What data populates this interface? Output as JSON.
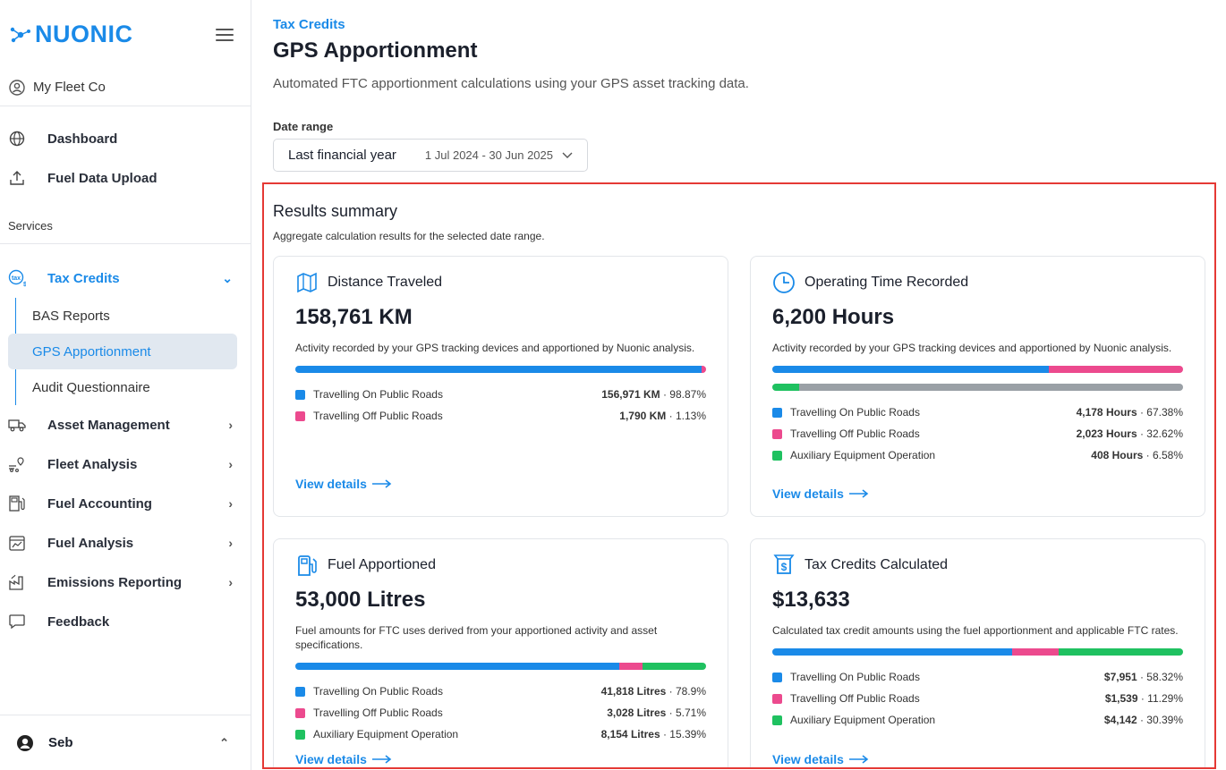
{
  "sidebar": {
    "brand": "NUONIC",
    "org": "My Fleet Co",
    "primary": [
      {
        "label": "Dashboard"
      },
      {
        "label": "Fuel Data Upload"
      }
    ],
    "services_label": "Services",
    "tax_credits": {
      "label": "Tax Credits",
      "children": [
        "BAS Reports",
        "GPS Apportionment",
        "Audit Questionnaire"
      ]
    },
    "groups": [
      {
        "label": "Asset Management"
      },
      {
        "label": "Fleet Analysis"
      },
      {
        "label": "Fuel Accounting"
      },
      {
        "label": "Fuel Analysis"
      },
      {
        "label": "Emissions Reporting"
      },
      {
        "label": "Feedback"
      }
    ],
    "user": "Seb"
  },
  "header": {
    "breadcrumb": "Tax Credits",
    "title": "GPS Apportionment",
    "subtitle": "Automated FTC apportionment calculations using your GPS asset tracking data."
  },
  "date_range": {
    "label": "Date range",
    "value": "Last financial year",
    "range": "1 Jul 2024 - 30 Jun 2025"
  },
  "summary": {
    "title": "Results summary",
    "subtitle": "Aggregate calculation results for the selected date range.",
    "view_details": "View details",
    "colors": {
      "blue": "#1a8ae8",
      "pink": "#ec4a8e",
      "green": "#1fc160",
      "grey": "#9aa0a6"
    },
    "cards": [
      {
        "title": "Distance Traveled",
        "big": "158,761 KM",
        "desc": "Activity recorded by your GPS tracking devices and apportioned by Nuonic analysis.",
        "bar": [
          0.9887,
          0.0113
        ],
        "rows": [
          {
            "label": "Travelling On Public Roads",
            "value": "156,971 KM",
            "pct": " · 98.87%"
          },
          {
            "label": "Travelling Off Public Roads",
            "value": "1,790 KM",
            "pct": " · 1.13%"
          }
        ]
      },
      {
        "title": "Operating Time Recorded",
        "big": "6,200 Hours",
        "desc": "Activity recorded by your GPS tracking devices and apportioned by Nuonic analysis.",
        "bar": [
          0.6738,
          0.3262
        ],
        "bar2": [
          0.0658,
          0.9342
        ],
        "rows": [
          {
            "label": "Travelling On Public Roads",
            "value": "4,178 Hours",
            "pct": " · 67.38%"
          },
          {
            "label": "Travelling Off Public Roads",
            "value": "2,023 Hours",
            "pct": " · 32.62%"
          },
          {
            "label": "Auxiliary Equipment Operation",
            "value": "408 Hours",
            "pct": " · 6.58%"
          }
        ]
      },
      {
        "title": "Fuel Apportioned",
        "big": "53,000 Litres",
        "desc": "Fuel amounts for FTC uses derived from your apportioned activity and asset specifications.",
        "bar": [
          0.789,
          0.0571,
          0.1539
        ],
        "rows": [
          {
            "label": "Travelling On Public Roads",
            "value": "41,818 Litres",
            "pct": " · 78.9%"
          },
          {
            "label": "Travelling Off Public Roads",
            "value": "3,028 Litres",
            "pct": " · 5.71%"
          },
          {
            "label": "Auxiliary Equipment Operation",
            "value": "8,154 Litres",
            "pct": " · 15.39%"
          }
        ]
      },
      {
        "title": "Tax Credits Calculated",
        "big": "$13,633",
        "desc": "Calculated tax credit amounts using the fuel apportionment and applicable FTC rates.",
        "bar": [
          0.5832,
          0.1129,
          0.3039
        ],
        "rows": [
          {
            "label": "Travelling On Public Roads",
            "value": "$7,951",
            "pct": " · 58.32%"
          },
          {
            "label": "Travelling Off Public Roads",
            "value": "$1,539",
            "pct": " · 11.29%"
          },
          {
            "label": "Auxiliary Equipment Operation",
            "value": "$4,142",
            "pct": " · 30.39%"
          }
        ]
      }
    ]
  }
}
